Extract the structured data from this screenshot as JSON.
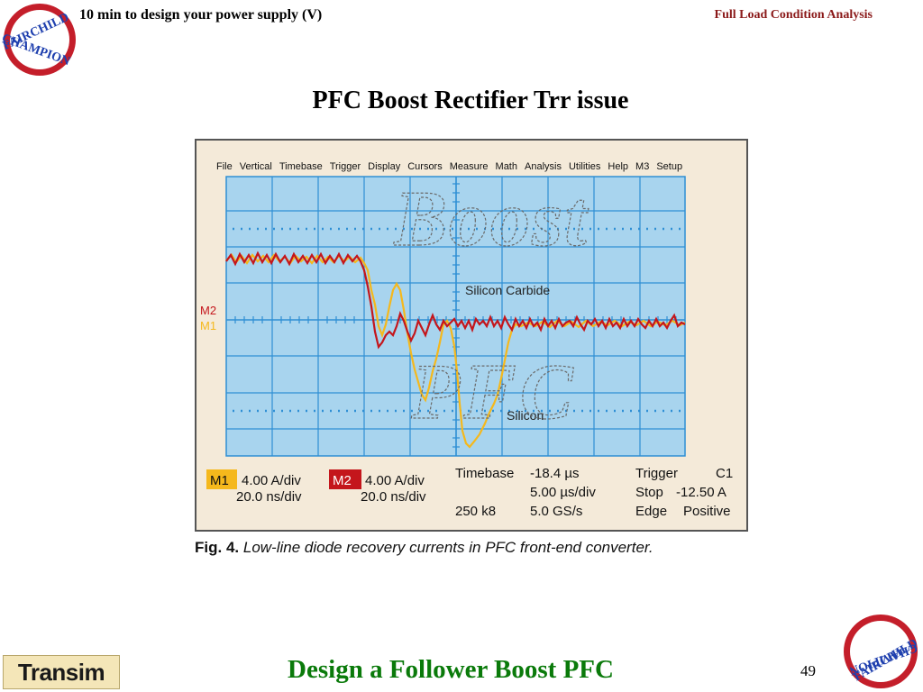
{
  "header": {
    "left_title": "10 min to design your power supply (V)",
    "right_title": "Full Load Condition Analysis"
  },
  "slide": {
    "title": "PFC Boost Rectifier Trr issue"
  },
  "scope": {
    "menu": [
      "File",
      "Vertical",
      "Timebase",
      "Trigger",
      "Display",
      "Cursors",
      "Measure",
      "Math",
      "Analysis",
      "Utilities",
      "Help",
      "M3",
      "Setup"
    ],
    "watermark_line1": "Boost",
    "watermark_line2": "PFC",
    "trace_labels": {
      "silicon_carbide": "Silicon Carbide",
      "silicon": "Silicon"
    },
    "marker_m2": "M2",
    "marker_m1": "M1",
    "m1": {
      "badge": "M1",
      "scale": "4.00 A/div",
      "time": "20.0 ns/div",
      "color": "#f5b81c"
    },
    "m2": {
      "badge": "M2",
      "scale": "4.00 A/div",
      "time": "20.0 ns/div",
      "color": "#c4161c"
    },
    "timebase": {
      "label": "Timebase",
      "value": "-18.4 µs",
      "per_div": "5.00 µs/div",
      "sample_rate": "5.0 GS/s",
      "record": "250 k8"
    },
    "trigger": {
      "label": "Trigger",
      "channel": "C1",
      "mode": "Stop",
      "level": "-12.50 A",
      "type": "Edge",
      "slope": "Positive"
    },
    "grid_color": "#2f8fd4",
    "plot_bg": "#a8d4ee"
  },
  "figure": {
    "number": "Fig. 4.",
    "caption": "Low-line diode recovery currents in PFC front-end converter."
  },
  "footer": {
    "title": "Design a Follower Boost PFC",
    "page_number": "49",
    "logo_text": "Transim",
    "title_color": "#0a7a0a"
  },
  "logos": {
    "top_text_a": "FAIRCHILD",
    "top_text_b": "CHAMPION",
    "bottom_text_a": "CHAMPION",
    "bottom_text_b": "FAIRCHILD"
  }
}
